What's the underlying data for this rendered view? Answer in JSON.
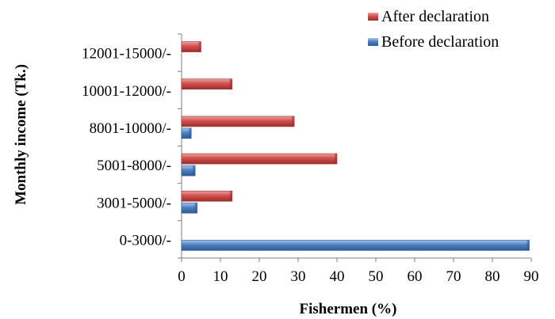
{
  "chart_data": {
    "type": "bar",
    "orientation": "horizontal",
    "categories": [
      "0-3000/-",
      "3001-5000/-",
      "5001-8000/-",
      "8001-10000/-",
      "10001-12000/-",
      "12001-15000/-"
    ],
    "series": [
      {
        "name": "Before declaration",
        "values": [
          89.5,
          4,
          3.5,
          2.5,
          0,
          0
        ],
        "color": "#4f81bd"
      },
      {
        "name": "After declaration",
        "values": [
          0,
          13,
          40,
          29,
          13,
          5
        ],
        "color": "#c0504d"
      }
    ],
    "xlabel": "Fishermen (%)",
    "ylabel": "Monthly income (Tk.)",
    "xlim": [
      0,
      90
    ],
    "xticks": [
      0,
      10,
      20,
      30,
      40,
      50,
      60,
      70,
      80,
      90
    ],
    "grid": false,
    "legend": "top-right"
  }
}
